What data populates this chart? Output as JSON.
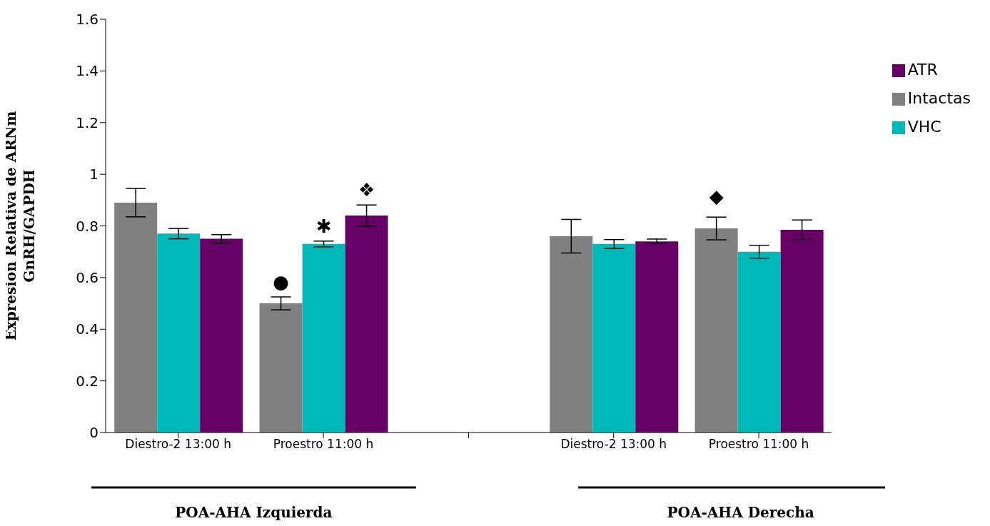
{
  "chart_data": {
    "type": "bar",
    "ylabel": "Expresion Relativa de  ARNm\nGnRH/GAPDH",
    "categories": [
      "Diestro-2 13:00 h",
      "Proestro 11:00 h",
      null,
      "Diestro-2 13:00 h",
      "Proestro 11:00 h"
    ],
    "series": [
      {
        "name": "Intactas",
        "color": "#808080",
        "values": [
          0.89,
          0.5,
          null,
          0.76,
          0.79
        ],
        "errors": [
          0.055,
          0.025,
          null,
          0.065,
          0.044
        ],
        "value_labels": [
          null,
          "●",
          null,
          null,
          "◆"
        ]
      },
      {
        "name": "VHC",
        "color": "#00b8b8",
        "values": [
          0.77,
          0.73,
          null,
          0.73,
          0.7
        ],
        "errors": [
          0.02,
          0.011,
          null,
          0.017,
          0.025
        ],
        "value_labels": [
          null,
          "✱",
          null,
          null,
          null
        ]
      },
      {
        "name": "ATR",
        "color": "#660066",
        "values": [
          0.75,
          0.84,
          null,
          0.74,
          0.785
        ],
        "errors": [
          0.016,
          0.041,
          null,
          0.009,
          0.038
        ],
        "value_labels": [
          null,
          "❖",
          null,
          null,
          null
        ]
      }
    ],
    "ylim": [
      0,
      1.6
    ],
    "yticks": [
      0,
      0.2,
      0.4,
      0.6,
      0.8,
      1,
      1.2,
      1.4,
      1.6
    ],
    "grid": false,
    "legend": "top right",
    "annotations": [
      "POA-AHA Izquierda",
      "POA-AHA Derecha"
    ]
  }
}
